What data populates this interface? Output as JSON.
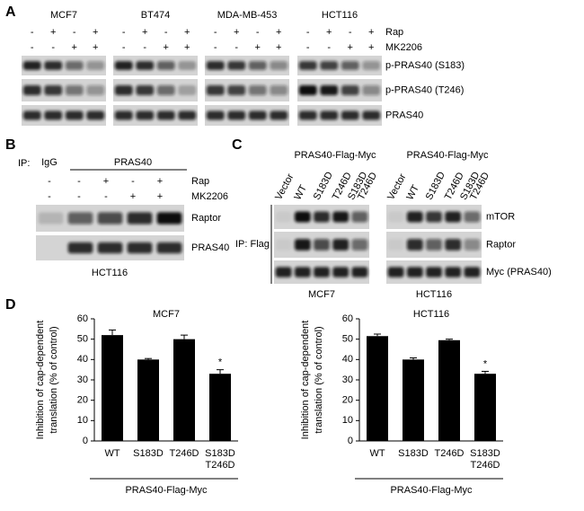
{
  "panel_a": {
    "label": "A",
    "cell_lines": [
      "MCF7",
      "BT474",
      "MDA-MB-453",
      "HCT116"
    ],
    "treatments": [
      {
        "label": "Rap",
        "signs": [
          "-",
          "+",
          "-",
          "+",
          "-",
          "+",
          "-",
          "+",
          "-",
          "+",
          "-",
          "+",
          "-",
          "+",
          "-",
          "+"
        ]
      },
      {
        "label": "MK2206",
        "signs": [
          "-",
          "-",
          "+",
          "+",
          "-",
          "-",
          "+",
          "+",
          "-",
          "-",
          "+",
          "+",
          "-",
          "-",
          "+",
          "+"
        ]
      }
    ],
    "blots": [
      "p-PRAS40 (S183)",
      "p-PRAS40 (T246)",
      "PRAS40"
    ]
  },
  "panel_b": {
    "label": "B",
    "ip_label": "IP:",
    "ip_groups": [
      "IgG",
      "PRAS40"
    ],
    "treatments": [
      {
        "label": "Rap",
        "signs": [
          "-",
          "-",
          "+",
          "-",
          "+"
        ]
      },
      {
        "label": "MK2206",
        "signs": [
          "-",
          "-",
          "-",
          "+",
          "+"
        ]
      }
    ],
    "blots": [
      "Raptor",
      "PRAS40"
    ],
    "cell_line": "HCT116"
  },
  "panel_c": {
    "label": "C",
    "ip_label": "IP: Flag",
    "groups": [
      {
        "header": "PRAS40-Flag-Myc",
        "cell_line": "MCF7",
        "lanes": [
          [
            "Vector"
          ],
          [
            "WT"
          ],
          [
            "S183D"
          ],
          [
            "T246D"
          ],
          [
            "S183D",
            "T246D"
          ]
        ]
      },
      {
        "header": "PRAS40-Flag-Myc",
        "cell_line": "HCT116",
        "lanes": [
          [
            "Vector"
          ],
          [
            "WT"
          ],
          [
            "S183D"
          ],
          [
            "T246D"
          ],
          [
            "S183D",
            "T246D"
          ]
        ]
      }
    ],
    "blots": [
      "mTOR",
      "Raptor",
      "Myc (PRAS40)"
    ]
  },
  "panel_d": {
    "label": "D"
  },
  "chart_data": [
    {
      "type": "bar",
      "title": "MCF7",
      "ylabel": [
        "Inhibition of cap-dependent",
        "translation  (% of control)"
      ],
      "categories": [
        "WT",
        "S183D",
        "T246D",
        [
          "S183D",
          "T246D"
        ]
      ],
      "values": [
        52,
        40,
        50,
        33
      ],
      "errors": [
        2.5,
        0.5,
        2,
        2
      ],
      "color": "#000000",
      "ylim": [
        0,
        60
      ],
      "yticks": [
        0,
        10,
        20,
        30,
        40,
        50,
        60
      ],
      "annotation": "*",
      "group_label": "PRAS40-Flag-Myc"
    },
    {
      "type": "bar",
      "title": "HCT116",
      "ylabel": [
        "Inhibition of cap-dependent",
        "translation  (% of control)"
      ],
      "categories": [
        "WT",
        "S183D",
        "T246D",
        [
          "S183D",
          "T246D"
        ]
      ],
      "values": [
        51.5,
        40,
        49.5,
        33
      ],
      "errors": [
        1,
        0.8,
        0.5,
        1.2
      ],
      "color": "#000000",
      "ylim": [
        0,
        60
      ],
      "yticks": [
        0,
        10,
        20,
        30,
        40,
        50,
        60
      ],
      "annotation": "*",
      "group_label": "PRAS40-Flag-Myc"
    }
  ]
}
